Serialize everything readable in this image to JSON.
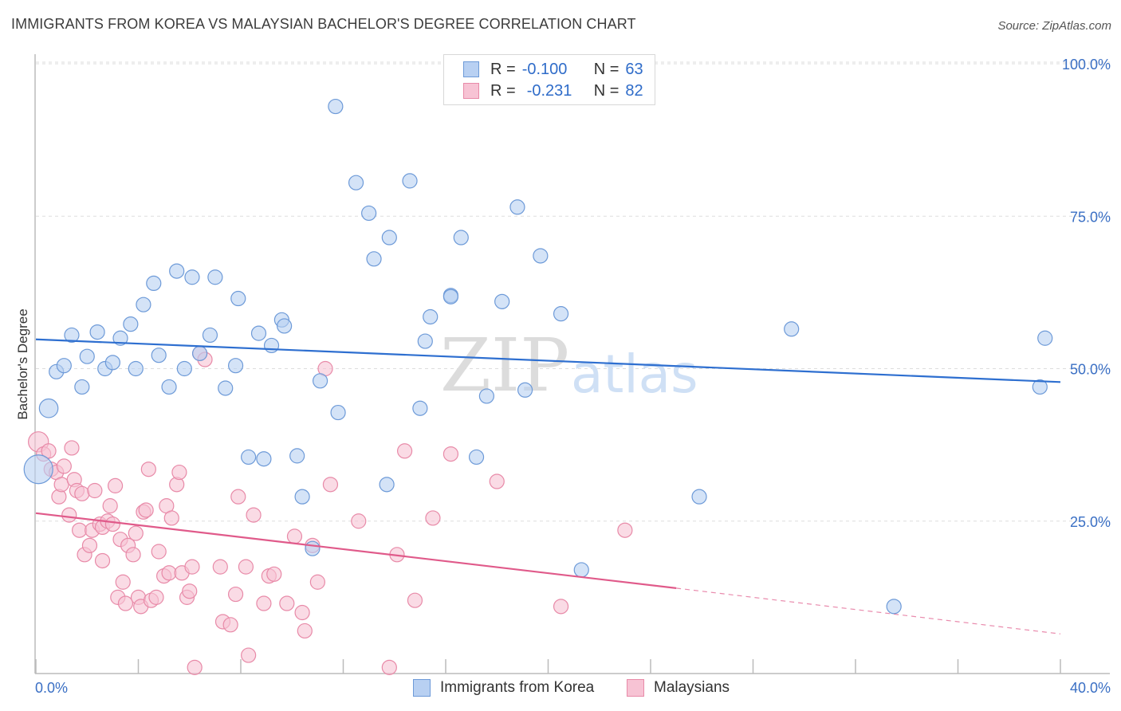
{
  "title": "IMMIGRANTS FROM KOREA VS MALAYSIAN BACHELOR'S DEGREE CORRELATION CHART",
  "source": "Source: ZipAtlas.com",
  "watermark": {
    "zip": "ZIP",
    "atlas": "atlas"
  },
  "legend": {
    "r_label": "R =",
    "n_label": "N =",
    "rows": [
      {
        "r": "-0.100",
        "n": "63"
      },
      {
        "r": "-0.231",
        "n": "82"
      }
    ]
  },
  "colors": {
    "korea_fill": "#b8d0f2",
    "korea_stroke": "#6d9ad8",
    "korea_line": "#2e6fd0",
    "malay_fill": "#f7c3d4",
    "malay_stroke": "#e88aa8",
    "malay_line": "#e05a8a",
    "grid": "#dddddd",
    "axis_text": "#3a6fc4"
  },
  "chart_data": {
    "type": "scatter",
    "xlabel": "",
    "ylabel": "Bachelor's Degree",
    "xlim": [
      0,
      40
    ],
    "ylim": [
      0,
      100
    ],
    "x_tick_labels": [
      "0.0%",
      "40.0%"
    ],
    "y_tick_labels": [
      "100.0%",
      "75.0%",
      "50.0%",
      "25.0%"
    ],
    "y_ticks": [
      100,
      75,
      50,
      25
    ],
    "grid": true,
    "series": [
      {
        "name": "Immigrants from Korea",
        "r": -0.1,
        "n": 63,
        "trend": {
          "x0": 0,
          "y0": 54.8,
          "x1": 40,
          "y1": 47.8
        },
        "points": [
          [
            0.1,
            33.5,
            2.0
          ],
          [
            0.5,
            43.5,
            1.3
          ],
          [
            0.8,
            49.5,
            1
          ],
          [
            1.1,
            50.5,
            1
          ],
          [
            1.4,
            55.5,
            1
          ],
          [
            1.8,
            47.0,
            1
          ],
          [
            2.0,
            52.0,
            1
          ],
          [
            2.4,
            56.0,
            1
          ],
          [
            2.7,
            50.0,
            1
          ],
          [
            3.0,
            51.0,
            1
          ],
          [
            3.3,
            55.0,
            1
          ],
          [
            3.7,
            57.3,
            1
          ],
          [
            3.9,
            50.0,
            1
          ],
          [
            4.2,
            60.5,
            1
          ],
          [
            4.6,
            64.0,
            1
          ],
          [
            4.8,
            52.2,
            1
          ],
          [
            5.2,
            47.0,
            1
          ],
          [
            5.5,
            66.0,
            1
          ],
          [
            5.8,
            50.0,
            1
          ],
          [
            6.1,
            65.0,
            1
          ],
          [
            6.4,
            52.5,
            1
          ],
          [
            6.8,
            55.5,
            1
          ],
          [
            7.0,
            65.0,
            1
          ],
          [
            7.4,
            46.8,
            1
          ],
          [
            7.8,
            50.5,
            1
          ],
          [
            7.9,
            61.5,
            1
          ],
          [
            8.3,
            35.5,
            1
          ],
          [
            8.7,
            55.8,
            1
          ],
          [
            8.9,
            35.2,
            1
          ],
          [
            9.2,
            53.8,
            1
          ],
          [
            9.6,
            58.0,
            1
          ],
          [
            9.7,
            57.0,
            1
          ],
          [
            10.2,
            35.7,
            1
          ],
          [
            10.4,
            29.0,
            1
          ],
          [
            10.8,
            20.5,
            1
          ],
          [
            11.1,
            48.0,
            1
          ],
          [
            11.7,
            93.0,
            1
          ],
          [
            11.8,
            42.8,
            1
          ],
          [
            12.5,
            80.5,
            1
          ],
          [
            13.0,
            75.5,
            1
          ],
          [
            13.2,
            68.0,
            1
          ],
          [
            13.7,
            31.0,
            1
          ],
          [
            13.8,
            71.5,
            1
          ],
          [
            15.0,
            43.5,
            1
          ],
          [
            15.2,
            54.5,
            1
          ],
          [
            15.4,
            58.5,
            1
          ],
          [
            16.2,
            62.0,
            1
          ],
          [
            16.2,
            61.8,
            1
          ],
          [
            16.6,
            71.5,
            1
          ],
          [
            17.2,
            35.5,
            1
          ],
          [
            17.6,
            45.5,
            1
          ],
          [
            18.2,
            61.0,
            1
          ],
          [
            18.8,
            76.5,
            1
          ],
          [
            19.1,
            46.5,
            1
          ],
          [
            19.7,
            68.5,
            1
          ],
          [
            20.5,
            59.0,
            1
          ],
          [
            21.3,
            17.0,
            1
          ],
          [
            25.9,
            29.0,
            1
          ],
          [
            29.5,
            56.5,
            1
          ],
          [
            33.5,
            11.0,
            1
          ],
          [
            39.2,
            47.0,
            1
          ],
          [
            39.4,
            55.0,
            1
          ],
          [
            14.6,
            80.8,
            1
          ]
        ]
      },
      {
        "name": "Malaysians",
        "r": -0.231,
        "n": 82,
        "trend": {
          "x0": 0,
          "y0": 26.3,
          "x1": 25,
          "y1": 14.0,
          "dash_x1": 40,
          "dash_y1": 6.5
        },
        "points": [
          [
            0.1,
            38.0,
            1.4
          ],
          [
            0.3,
            36.0,
            1
          ],
          [
            0.5,
            36.5,
            1
          ],
          [
            0.6,
            33.5,
            1
          ],
          [
            0.8,
            33.0,
            1
          ],
          [
            0.9,
            29.0,
            1
          ],
          [
            1.0,
            31.0,
            1
          ],
          [
            1.1,
            34.0,
            1
          ],
          [
            1.3,
            26.0,
            1
          ],
          [
            1.4,
            37.0,
            1
          ],
          [
            1.5,
            31.8,
            1
          ],
          [
            1.6,
            30.0,
            1
          ],
          [
            1.7,
            23.5,
            1
          ],
          [
            1.8,
            29.5,
            1
          ],
          [
            1.9,
            19.5,
            1
          ],
          [
            2.1,
            21.0,
            1
          ],
          [
            2.2,
            23.5,
            1
          ],
          [
            2.3,
            30.0,
            1
          ],
          [
            2.5,
            24.5,
            1
          ],
          [
            2.6,
            24.0,
            1
          ],
          [
            2.6,
            18.5,
            1
          ],
          [
            2.8,
            25.0,
            1
          ],
          [
            2.9,
            27.5,
            1
          ],
          [
            3.0,
            24.5,
            1
          ],
          [
            3.1,
            30.8,
            1
          ],
          [
            3.2,
            12.5,
            1
          ],
          [
            3.3,
            22.0,
            1
          ],
          [
            3.4,
            15.0,
            1
          ],
          [
            3.5,
            11.5,
            1
          ],
          [
            3.6,
            21.0,
            1
          ],
          [
            3.8,
            19.5,
            1
          ],
          [
            3.9,
            23.0,
            1
          ],
          [
            4.0,
            12.5,
            1
          ],
          [
            4.1,
            11.0,
            1
          ],
          [
            4.2,
            26.5,
            1
          ],
          [
            4.3,
            26.8,
            1
          ],
          [
            4.4,
            33.5,
            1
          ],
          [
            4.5,
            12.0,
            1
          ],
          [
            4.7,
            12.5,
            1
          ],
          [
            4.8,
            20.0,
            1
          ],
          [
            5.0,
            16.0,
            1
          ],
          [
            5.1,
            27.5,
            1
          ],
          [
            5.2,
            16.5,
            1
          ],
          [
            5.3,
            25.5,
            1
          ],
          [
            5.5,
            31.0,
            1
          ],
          [
            5.6,
            33.0,
            1
          ],
          [
            5.7,
            16.5,
            1
          ],
          [
            5.9,
            12.5,
            1
          ],
          [
            6.0,
            13.5,
            1
          ],
          [
            6.1,
            17.5,
            1
          ],
          [
            6.2,
            1.0,
            1
          ],
          [
            6.4,
            52.5,
            1
          ],
          [
            6.6,
            51.5,
            1
          ],
          [
            7.2,
            17.5,
            1
          ],
          [
            7.3,
            8.5,
            1
          ],
          [
            7.6,
            8.0,
            1
          ],
          [
            7.8,
            13.0,
            1
          ],
          [
            7.9,
            29.0,
            1
          ],
          [
            8.2,
            17.5,
            1
          ],
          [
            8.3,
            3.0,
            1
          ],
          [
            8.5,
            26.0,
            1
          ],
          [
            8.9,
            11.5,
            1
          ],
          [
            9.1,
            16.0,
            1
          ],
          [
            9.3,
            16.3,
            1
          ],
          [
            9.8,
            11.5,
            1
          ],
          [
            10.1,
            22.5,
            1
          ],
          [
            10.4,
            10.0,
            1
          ],
          [
            10.5,
            7.0,
            1
          ],
          [
            10.8,
            21.0,
            1
          ],
          [
            11.0,
            15.0,
            1
          ],
          [
            11.3,
            50.0,
            1
          ],
          [
            11.5,
            31.0,
            1
          ],
          [
            12.6,
            25.0,
            1
          ],
          [
            13.8,
            1.0,
            1
          ],
          [
            14.1,
            19.5,
            1
          ],
          [
            14.4,
            36.5,
            1
          ],
          [
            14.8,
            12.0,
            1
          ],
          [
            15.5,
            25.5,
            1
          ],
          [
            16.2,
            36.0,
            1
          ],
          [
            18.0,
            31.5,
            1
          ],
          [
            20.5,
            11.0,
            1
          ],
          [
            23.0,
            23.5,
            1
          ]
        ]
      }
    ]
  }
}
